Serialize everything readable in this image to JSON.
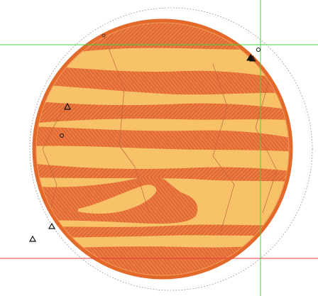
{
  "canvas": {
    "background": "#ffffff",
    "hoop_outline_color": "#9a9a9a",
    "guide_color_horizontal_top": "#38d838",
    "guide_color_horizontal_bottom": "#e83a3a",
    "guide_color_vertical": "#38d838"
  },
  "design": {
    "name": "planet-embroidery",
    "border_color": "#e3692b",
    "dark_stitch_color": "#e36a35",
    "light_fill_color": "#f6be62",
    "hatch_color": "#f4a35a",
    "stitch_line_color": "#b8603a"
  },
  "markers": {
    "triangle_icon": "triangle-marker",
    "circle_icon": "circle-marker"
  }
}
